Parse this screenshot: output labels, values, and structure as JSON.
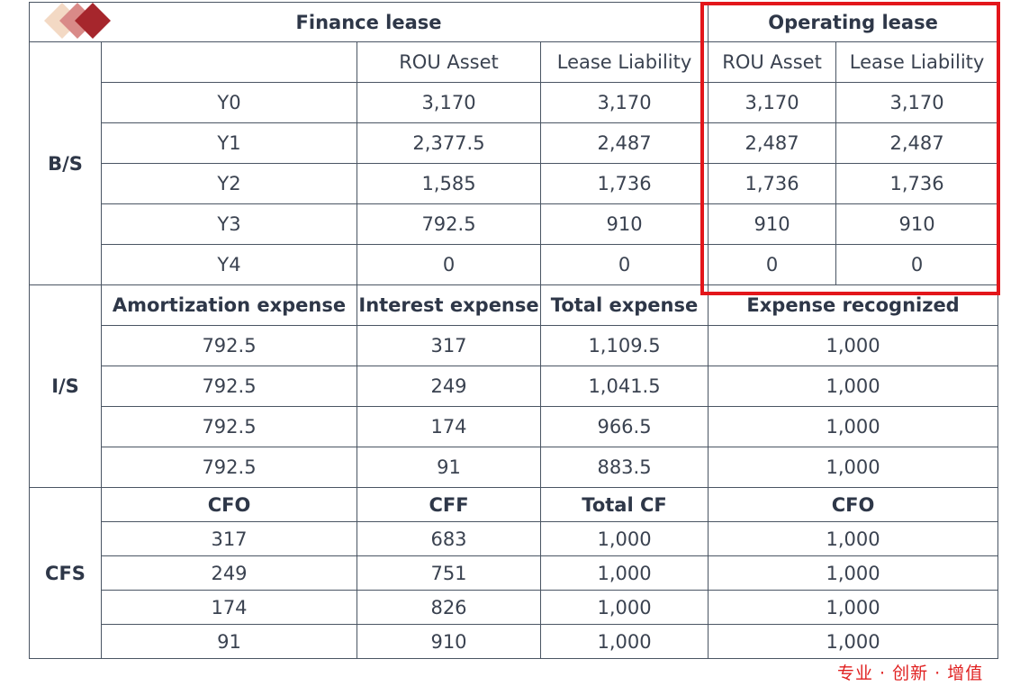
{
  "header": {
    "finance_lease": "Finance lease",
    "operating_lease": "Operating lease"
  },
  "sections": {
    "bs": "B/S",
    "is": "I/S",
    "cfs": "CFS"
  },
  "bs_columns": [
    "ROU Asset",
    "Lease Liability",
    "ROU Asset",
    "Lease Liability"
  ],
  "bs_rows": [
    {
      "year": "Y0",
      "cells": [
        "3,170",
        "3,170",
        "3,170",
        "3,170"
      ]
    },
    {
      "year": "Y1",
      "cells": [
        "2,377.5",
        "2,487",
        "2,487",
        "2,487"
      ]
    },
    {
      "year": "Y2",
      "cells": [
        "1,585",
        "1,736",
        "1,736",
        "1,736"
      ]
    },
    {
      "year": "Y3",
      "cells": [
        "792.5",
        "910",
        "910",
        "910"
      ]
    },
    {
      "year": "Y4",
      "cells": [
        "0",
        "0",
        "0",
        "0"
      ]
    }
  ],
  "is_columns": [
    "Amortization expense",
    "Interest expense",
    "Total expense",
    "Expense recognized"
  ],
  "is_rows": [
    [
      "792.5",
      "317",
      "1,109.5",
      "1,000"
    ],
    [
      "792.5",
      "249",
      "1,041.5",
      "1,000"
    ],
    [
      "792.5",
      "174",
      "966.5",
      "1,000"
    ],
    [
      "792.5",
      "91",
      "883.5",
      "1,000"
    ]
  ],
  "cfs_columns": [
    "CFO",
    "CFF",
    "Total CF",
    "CFO"
  ],
  "cfs_rows": [
    [
      "317",
      "683",
      "1,000",
      "1,000"
    ],
    [
      "249",
      "751",
      "1,000",
      "1,000"
    ],
    [
      "174",
      "826",
      "1,000",
      "1,000"
    ],
    [
      "91",
      "910",
      "1,000",
      "1,000"
    ]
  ],
  "watermark": "专业 · 创新 · 增值",
  "colors": {
    "highlight_border": "#e3161b",
    "grid": "#4a5563",
    "watermark": "#e02020"
  }
}
